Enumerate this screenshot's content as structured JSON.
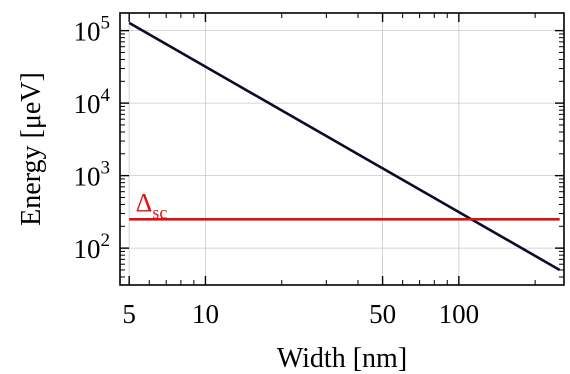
{
  "chart_data": {
    "type": "line",
    "x_scale": "log",
    "y_scale": "log",
    "grid": true,
    "xlabel": "Width [nm]",
    "ylabel": "Energy [μeV]",
    "xlim": [
      4.6,
      260
    ],
    "ylim": [
      31,
      175000
    ],
    "x_ticks": [
      {
        "value": 5,
        "label": "5"
      },
      {
        "value": 10,
        "label": "10"
      },
      {
        "value": 50,
        "label": "50"
      },
      {
        "value": 100,
        "label": "100"
      }
    ],
    "y_ticks": [
      {
        "value": 100,
        "base": "10",
        "exp": "2"
      },
      {
        "value": 1000,
        "base": "10",
        "exp": "3"
      },
      {
        "value": 10000,
        "base": "10",
        "exp": "4"
      },
      {
        "value": 100000,
        "base": "10",
        "exp": "5"
      }
    ],
    "series": [
      {
        "color": "#0b0b2a",
        "x": [
          5,
          250
        ],
        "y": [
          128000,
          50
        ]
      },
      {
        "color": "#e01010",
        "x": [
          5,
          250
        ],
        "y": [
          250,
          250
        ]
      }
    ],
    "annotations": [
      {
        "main": "Δ",
        "sub": "sc",
        "x": 5.3,
        "y": 320,
        "color": "#e01010"
      }
    ]
  }
}
